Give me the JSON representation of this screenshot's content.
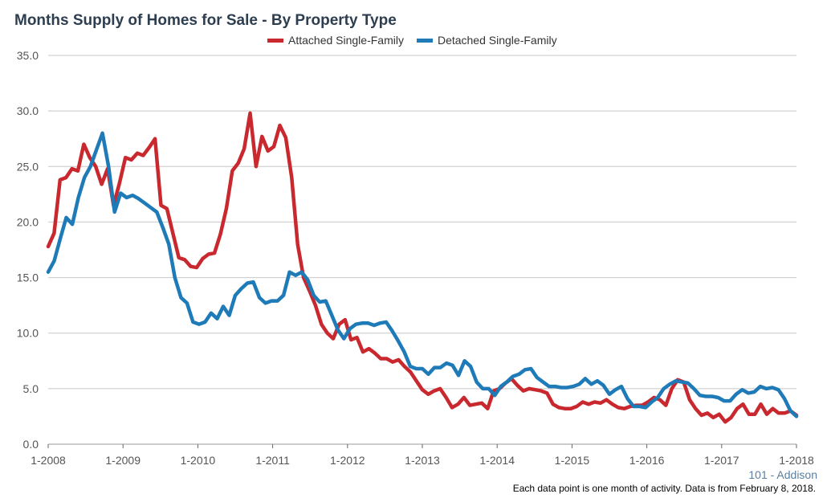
{
  "chart_data": {
    "type": "line",
    "title": "Months Supply of Homes for Sale - By Property Type",
    "xlabel": "",
    "ylabel": "",
    "ylim": [
      0,
      35
    ],
    "yticks": [
      "0.0",
      "5.0",
      "10.0",
      "15.0",
      "20.0",
      "25.0",
      "30.0",
      "35.0"
    ],
    "xticks": [
      "1-2008",
      "1-2009",
      "1-2010",
      "1-2011",
      "1-2012",
      "1-2013",
      "1-2014",
      "1-2015",
      "1-2016",
      "1-2017",
      "1-2018"
    ],
    "x_start": "1-2008",
    "x_end": "1-2018",
    "grid": true,
    "legend_position": "top-center",
    "series": [
      {
        "name": "Attached Single-Family",
        "color": "#c8282e",
        "values": [
          17.8,
          19.0,
          23.8,
          24.0,
          24.8,
          24.6,
          27.0,
          25.8,
          25.0,
          23.4,
          24.8,
          21.5,
          23.5,
          25.8,
          25.6,
          26.2,
          26.0,
          26.7,
          27.5,
          21.5,
          21.2,
          19.0,
          16.8,
          16.6,
          16.0,
          15.9,
          16.7,
          17.1,
          17.2,
          18.9,
          21.2,
          24.6,
          25.3,
          26.6,
          29.8,
          25.0,
          27.7,
          26.4,
          26.8,
          28.7,
          27.6,
          24.0,
          18.0,
          15.0,
          13.8,
          12.5,
          10.8,
          10.0,
          9.5,
          10.8,
          11.2,
          9.4,
          9.6,
          8.3,
          8.6,
          8.2,
          7.7,
          7.7,
          7.4,
          7.6,
          7.0,
          6.5,
          5.7,
          4.9,
          4.5,
          4.8,
          5.0,
          4.2,
          3.3,
          3.6,
          4.2,
          3.5,
          3.6,
          3.7,
          3.2,
          4.8,
          5.0,
          5.5,
          5.9,
          5.3,
          4.8,
          5.0,
          4.9,
          4.8,
          4.6,
          3.6,
          3.3,
          3.2,
          3.2,
          3.4,
          3.8,
          3.6,
          3.8,
          3.7,
          4.0,
          3.6,
          3.3,
          3.2,
          3.4,
          3.5,
          3.5,
          3.8,
          4.2,
          4.0,
          3.5,
          5.0,
          5.8,
          5.6,
          4.0,
          3.2,
          2.6,
          2.8,
          2.4,
          2.7,
          2.0,
          2.4,
          3.2,
          3.6,
          2.7,
          2.7,
          3.6,
          2.7,
          3.2,
          2.8,
          2.8,
          3.0,
          2.6
        ],
        "note": "monthly values, 1-2008 through 1-2018"
      },
      {
        "name": "Detached Single-Family",
        "color": "#1f7ab8",
        "values": [
          15.5,
          16.5,
          18.5,
          20.4,
          19.8,
          22.2,
          24.0,
          25.0,
          26.5,
          28.0,
          25.0,
          20.9,
          22.6,
          22.2,
          22.4,
          22.1,
          21.7,
          21.3,
          20.9,
          19.5,
          18.0,
          15.0,
          13.2,
          12.7,
          11.0,
          10.8,
          11.0,
          11.8,
          11.3,
          12.4,
          11.6,
          13.4,
          14.0,
          14.5,
          14.6,
          13.2,
          12.7,
          12.9,
          12.9,
          13.4,
          15.5,
          15.2,
          15.5,
          14.8,
          13.4,
          12.8,
          12.9,
          11.6,
          10.3,
          9.5,
          10.4,
          10.8,
          10.9,
          10.9,
          10.7,
          10.9,
          11.0,
          10.2,
          9.3,
          8.3,
          7.0,
          6.8,
          6.8,
          6.3,
          6.9,
          6.9,
          7.3,
          7.1,
          6.2,
          7.5,
          7.0,
          5.6,
          5.0,
          5.0,
          4.4,
          5.2,
          5.6,
          6.1,
          6.3,
          6.7,
          6.8,
          6.0,
          5.6,
          5.2,
          5.2,
          5.1,
          5.1,
          5.2,
          5.4,
          5.9,
          5.4,
          5.7,
          5.3,
          4.5,
          4.9,
          5.2,
          4.1,
          3.4,
          3.4,
          3.3,
          3.8,
          4.2,
          5.0,
          5.4,
          5.7,
          5.6,
          5.5,
          5.0,
          4.4,
          4.3,
          4.3,
          4.2,
          3.9,
          3.9,
          4.5,
          4.9,
          4.6,
          4.7,
          5.2,
          5.0,
          5.1,
          4.9,
          4.1,
          3.0,
          2.5
        ],
        "note": "monthly values, 1-2008 through 1-2018"
      }
    ]
  },
  "location_label": "101 - Addison",
  "footnote": "Each data point is one month of activity. Data is from February 8, 2018."
}
